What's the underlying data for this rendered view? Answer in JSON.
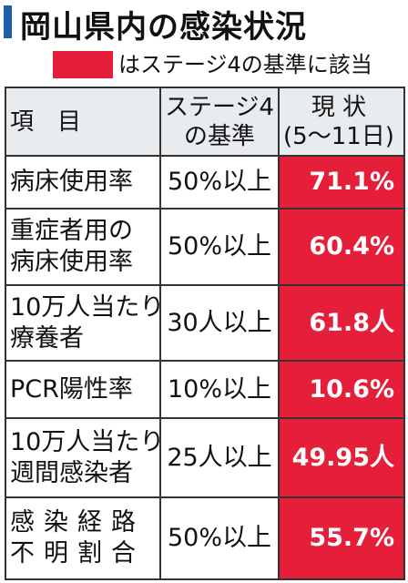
{
  "header": {
    "title": "岡山県内の感染状況",
    "legend": "はステージ4の基準に該当"
  },
  "table": {
    "header": [
      [
        "項　目"
      ],
      [
        "ステージ4",
        "の基準"
      ],
      [
        "現 状",
        "(5〜11日)"
      ]
    ],
    "rows": [
      [
        [
          "病床使用率"
        ],
        [
          "50%以上"
        ],
        [
          "71.1%"
        ]
      ],
      [
        [
          "重症者用の",
          "病床使用率"
        ],
        [
          "50%以上"
        ],
        [
          "60.4%"
        ]
      ],
      [
        [
          "10万人当たり",
          "療養者"
        ],
        [
          "30人以上"
        ],
        [
          "61.8人"
        ]
      ],
      [
        [
          "PCR陽性率"
        ],
        [
          "10%以上"
        ],
        [
          "10.6%"
        ]
      ],
      [
        [
          "10万人当たり",
          "週間感染者"
        ],
        [
          "25人以上"
        ],
        [
          "49.95人"
        ]
      ],
      [
        [
          "感染経路",
          "不明割合"
        ],
        [
          "50%以上"
        ],
        [
          "55.7%"
        ]
      ]
    ]
  }
}
